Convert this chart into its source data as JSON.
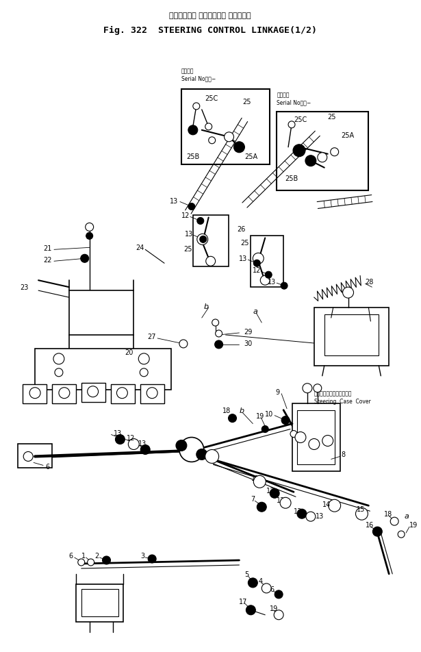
{
  "title_jp": "ステアリング コントロール リンケージ",
  "title_en": "Fig. 322  STEERING CONTROL LINKAGE(1/2)",
  "bg_color": "#ffffff",
  "fig_width": 6.15,
  "fig_height": 9.53,
  "dpi": 100,
  "serial_label": "適用号機\nSerial No．・−",
  "steering_cover_jp": "ステアリングケースカバー",
  "steering_cover_en": "Steering  Case  Cover"
}
